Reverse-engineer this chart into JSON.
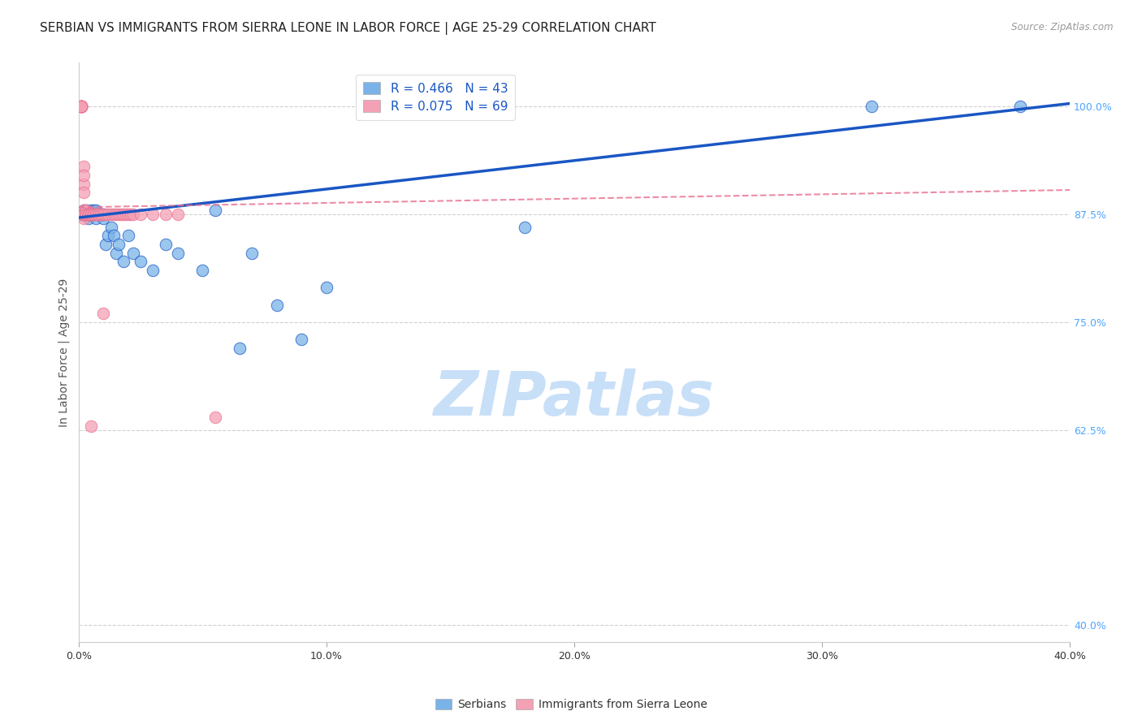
{
  "title": "SERBIAN VS IMMIGRANTS FROM SIERRA LEONE IN LABOR FORCE | AGE 25-29 CORRELATION CHART",
  "source": "Source: ZipAtlas.com",
  "ylabel": "In Labor Force | Age 25-29",
  "x_tick_labels": [
    "0.0%",
    "10.0%",
    "20.0%",
    "30.0%",
    "40.0%"
  ],
  "x_tick_values": [
    0.0,
    0.1,
    0.2,
    0.3,
    0.4
  ],
  "y_tick_labels": [
    "40.0%",
    "62.5%",
    "75.0%",
    "87.5%",
    "100.0%"
  ],
  "y_tick_values": [
    0.4,
    0.625,
    0.75,
    0.875,
    1.0
  ],
  "xlim": [
    0.0,
    0.4
  ],
  "ylim": [
    0.38,
    1.05
  ],
  "legend_R_serbian": "R = 0.466",
  "legend_N_serbian": "N = 43",
  "legend_R_sierra": "R = 0.075",
  "legend_N_sierra": "N = 69",
  "watermark": "ZIPatlas",
  "watermark_color": "#c8dff8",
  "serbian_color": "#7ab3e8",
  "sierra_color": "#f4a0b5",
  "serbian_trend_color": "#1a56c4",
  "sierra_trend_color": "#e87090",
  "title_fontsize": 11,
  "axis_label_fontsize": 10,
  "tick_fontsize": 9,
  "serbian_x": [
    0.001,
    0.001,
    0.002,
    0.002,
    0.002,
    0.003,
    0.003,
    0.003,
    0.004,
    0.004,
    0.005,
    0.005,
    0.006,
    0.006,
    0.007,
    0.007,
    0.008,
    0.009,
    0.01,
    0.01,
    0.011,
    0.012,
    0.013,
    0.014,
    0.015,
    0.016,
    0.018,
    0.02,
    0.022,
    0.025,
    0.03,
    0.035,
    0.04,
    0.05,
    0.055,
    0.065,
    0.07,
    0.08,
    0.09,
    0.1,
    0.18,
    0.32,
    0.38
  ],
  "serbian_y": [
    0.875,
    0.875,
    0.875,
    0.875,
    0.88,
    0.875,
    0.875,
    0.88,
    0.87,
    0.875,
    0.88,
    0.875,
    0.875,
    0.88,
    0.87,
    0.88,
    0.875,
    0.875,
    0.87,
    0.875,
    0.84,
    0.85,
    0.86,
    0.85,
    0.83,
    0.84,
    0.82,
    0.85,
    0.83,
    0.82,
    0.81,
    0.84,
    0.83,
    0.81,
    0.88,
    0.72,
    0.83,
    0.77,
    0.73,
    0.79,
    0.86,
    1.0,
    1.0
  ],
  "sierra_x": [
    0.001,
    0.001,
    0.001,
    0.001,
    0.001,
    0.001,
    0.001,
    0.001,
    0.001,
    0.001,
    0.002,
    0.002,
    0.002,
    0.002,
    0.002,
    0.002,
    0.002,
    0.002,
    0.002,
    0.002,
    0.003,
    0.003,
    0.003,
    0.003,
    0.003,
    0.003,
    0.004,
    0.004,
    0.004,
    0.004,
    0.004,
    0.005,
    0.005,
    0.005,
    0.005,
    0.005,
    0.006,
    0.006,
    0.006,
    0.006,
    0.007,
    0.007,
    0.007,
    0.008,
    0.008,
    0.008,
    0.009,
    0.009,
    0.01,
    0.01,
    0.011,
    0.012,
    0.013,
    0.014,
    0.015,
    0.016,
    0.017,
    0.018,
    0.019,
    0.02,
    0.021,
    0.022,
    0.025,
    0.03,
    0.035,
    0.04,
    0.005,
    0.01,
    0.055
  ],
  "sierra_y": [
    1.0,
    1.0,
    1.0,
    1.0,
    1.0,
    1.0,
    1.0,
    1.0,
    1.0,
    1.0,
    0.93,
    0.91,
    0.9,
    0.92,
    0.88,
    0.87,
    0.875,
    0.875,
    0.875,
    0.875,
    0.875,
    0.875,
    0.88,
    0.875,
    0.875,
    0.875,
    0.875,
    0.875,
    0.875,
    0.875,
    0.875,
    0.875,
    0.875,
    0.875,
    0.875,
    0.875,
    0.875,
    0.875,
    0.875,
    0.875,
    0.875,
    0.875,
    0.875,
    0.875,
    0.875,
    0.875,
    0.875,
    0.875,
    0.875,
    0.875,
    0.875,
    0.875,
    0.875,
    0.875,
    0.875,
    0.875,
    0.875,
    0.875,
    0.875,
    0.875,
    0.875,
    0.875,
    0.875,
    0.875,
    0.875,
    0.875,
    0.63,
    0.76,
    0.64
  ],
  "background_color": "#ffffff",
  "grid_color": "#d0d0d0",
  "tick_color_y": "#4da6ff",
  "title_color": "#222222",
  "serbian_trend_intercept": 0.871,
  "serbian_trend_slope": 0.33,
  "sierra_trend_intercept": 0.883,
  "sierra_trend_slope": 0.05
}
